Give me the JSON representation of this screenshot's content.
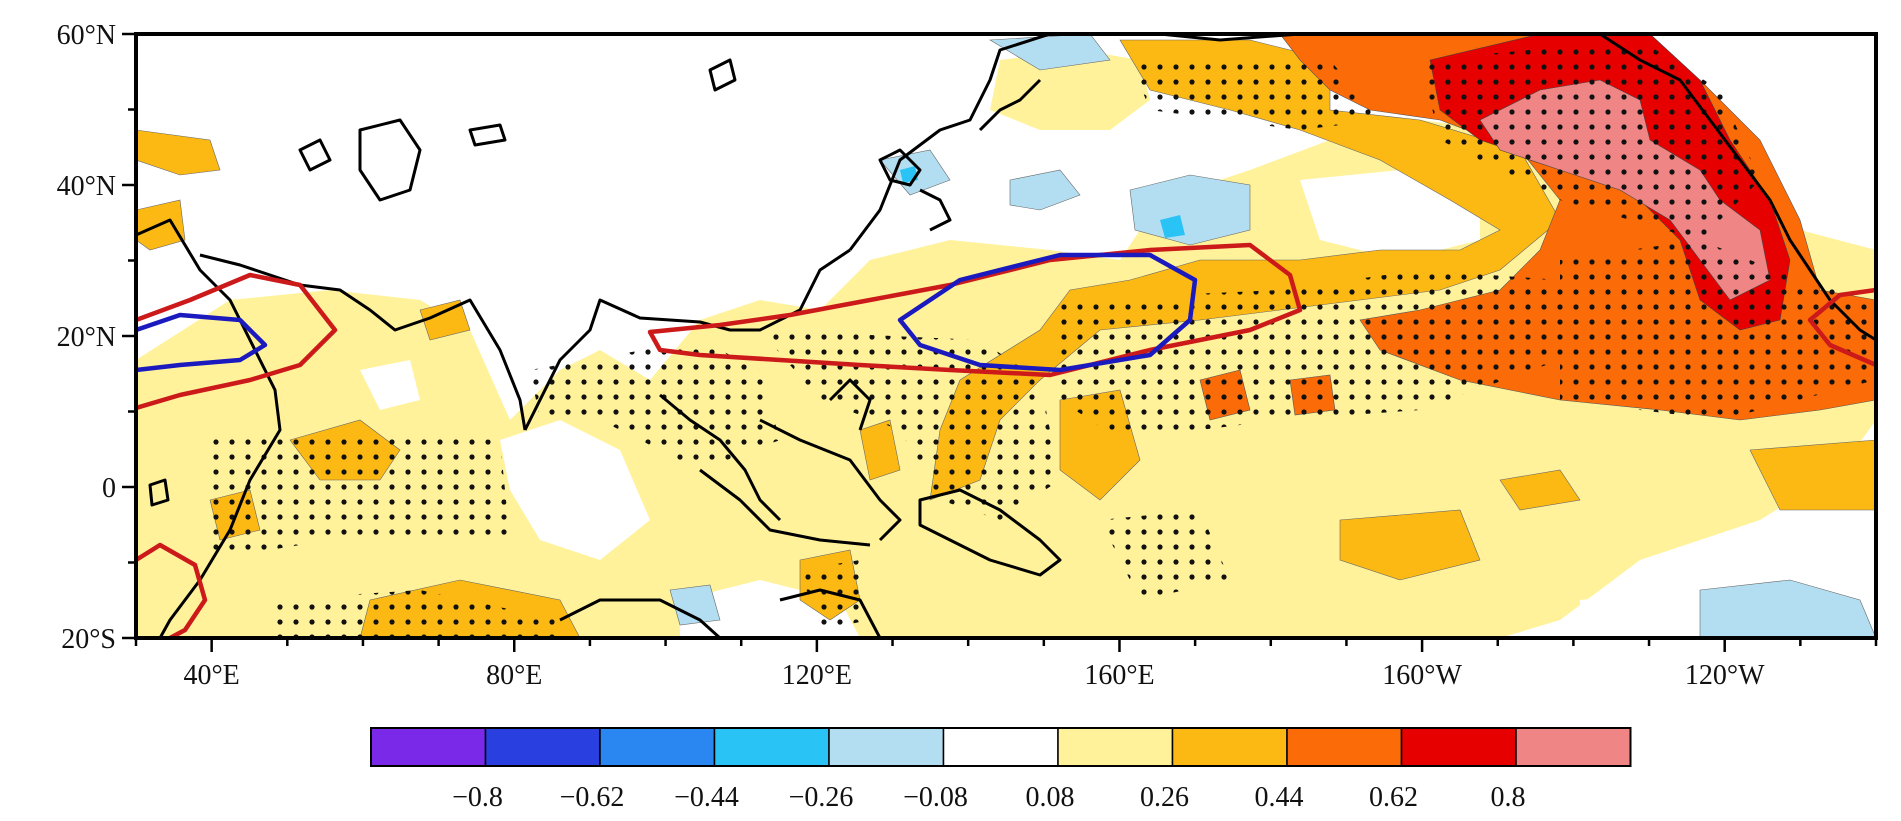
{
  "map": {
    "lat_labels": [
      "60°N",
      "40°N",
      "20°N",
      "0",
      "20°S"
    ],
    "lon_labels": [
      "40°E",
      "80°E",
      "120°E",
      "160°E",
      "160°W",
      "120°W"
    ],
    "lat_range": [
      -20,
      60
    ],
    "lon_range": [
      30,
      260
    ],
    "lat_ticks": [
      60,
      40,
      20,
      0,
      -20
    ],
    "lon_ticks": [
      40,
      80,
      120,
      160,
      200,
      240
    ],
    "stippling": "dots indicate significance",
    "contours": [
      {
        "color": "#cc1a1a",
        "meaning": "positive contour"
      },
      {
        "color": "#1a1abf",
        "meaning": "negative contour"
      }
    ]
  },
  "colorbar": {
    "colors": [
      "#7a29e8",
      "#2a3fe0",
      "#2a86f0",
      "#29c4f5",
      "#b3def2",
      "#ffffff",
      "#fff29a",
      "#fdb913",
      "#fb6b08",
      "#e60000",
      "#f08585"
    ],
    "labels": [
      "−0.8",
      "−0.62",
      "−0.44",
      "−0.26",
      "−0.08",
      "0.08",
      "0.26",
      "0.44",
      "0.62",
      "0.8"
    ]
  }
}
